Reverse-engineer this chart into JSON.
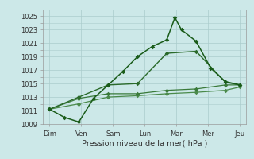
{
  "xlabel": "Pression niveau de la mer( hPa )",
  "bg_color": "#cce8e8",
  "grid_color": "#aacccc",
  "x_labels": [
    "Dim",
    "Ven",
    "Sam",
    "Lun",
    "Mar",
    "Mer",
    "Jeu"
  ],
  "ylim": [
    1009,
    1026
  ],
  "yticks": [
    1009,
    1011,
    1013,
    1015,
    1017,
    1019,
    1021,
    1023,
    1025
  ],
  "line1_x": [
    0,
    0.45,
    0.9,
    1.35,
    1.8,
    2.25,
    2.7,
    3.15,
    3.6,
    3.85,
    4.05,
    4.5,
    4.95,
    5.4,
    5.85
  ],
  "line1_y": [
    1011.2,
    1010.0,
    1009.3,
    1012.8,
    1014.8,
    1016.8,
    1019.0,
    1020.5,
    1021.5,
    1024.8,
    1023.0,
    1021.3,
    1017.3,
    1015.3,
    1014.8
  ],
  "line1_color": "#1a5c1a",
  "line2_x": [
    0,
    0.9,
    1.8,
    2.7,
    3.6,
    4.5,
    5.4,
    5.85
  ],
  "line2_y": [
    1011.2,
    1013.0,
    1014.8,
    1015.0,
    1019.5,
    1019.8,
    1015.2,
    1014.8
  ],
  "line2_color": "#2a6a2a",
  "line3_x": [
    0,
    0.9,
    1.8,
    2.7,
    3.6,
    4.5,
    5.4,
    5.85
  ],
  "line3_y": [
    1011.2,
    1012.8,
    1013.5,
    1013.5,
    1014.0,
    1014.2,
    1014.8,
    1014.8
  ],
  "line3_color": "#3a7a3a",
  "line4_x": [
    0,
    0.9,
    1.8,
    2.7,
    3.6,
    4.5,
    5.4,
    5.85
  ],
  "line4_y": [
    1011.2,
    1012.0,
    1013.0,
    1013.2,
    1013.5,
    1013.7,
    1014.0,
    1014.5
  ],
  "line4_color": "#4a8a4a"
}
